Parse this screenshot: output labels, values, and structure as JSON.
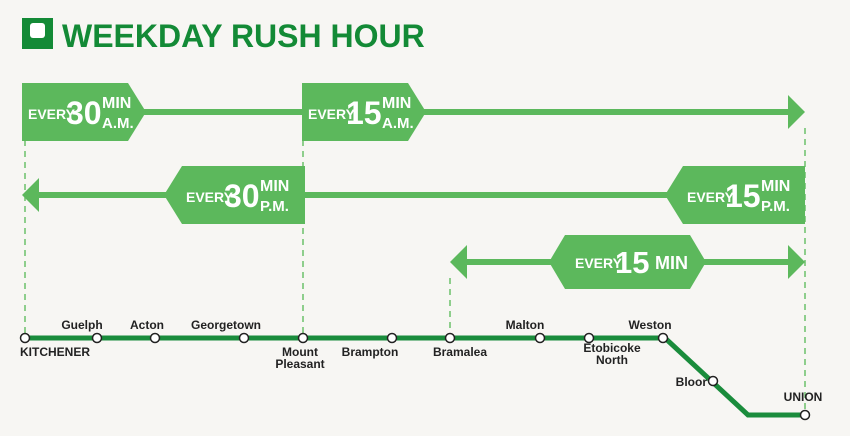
{
  "header": {
    "title": "WEEKDAY RUSH HOUR"
  },
  "services": [
    {
      "labels": [
        {
          "every": "EVERY",
          "number": "30",
          "unit": "MIN",
          "period": "A.M."
        },
        {
          "every": "EVERY",
          "number": "15",
          "unit": "MIN",
          "period": "A.M."
        }
      ]
    },
    {
      "labels": [
        {
          "every": "EVERY",
          "number": "30",
          "unit": "MIN",
          "period": "P.M."
        },
        {
          "every": "EVERY",
          "number": "15",
          "unit": "MIN",
          "period": "P.M."
        }
      ]
    },
    {
      "labels": [
        {
          "every": "EVERY",
          "number": "15",
          "unit": "MIN"
        }
      ]
    }
  ],
  "stations": [
    {
      "name": [
        "KITCHENER"
      ]
    },
    {
      "name": [
        "Guelph"
      ]
    },
    {
      "name": [
        "Acton"
      ]
    },
    {
      "name": [
        "Georgetown"
      ]
    },
    {
      "name": [
        "Mount",
        "Pleasant"
      ]
    },
    {
      "name": [
        "Brampton"
      ]
    },
    {
      "name": [
        "Bramalea"
      ]
    },
    {
      "name": [
        "Malton"
      ]
    },
    {
      "name": [
        "Etobicoke",
        "North"
      ]
    },
    {
      "name": [
        "Weston"
      ]
    },
    {
      "name": [
        "Bloor"
      ]
    },
    {
      "name": [
        "UNION"
      ]
    }
  ]
}
